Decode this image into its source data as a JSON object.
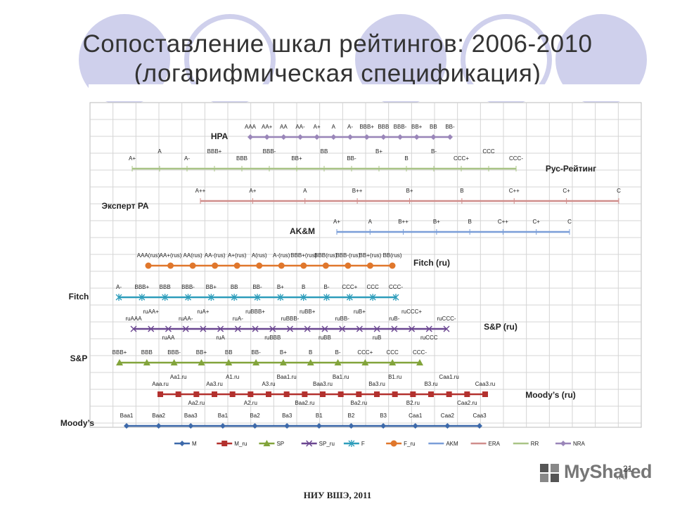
{
  "slide": {
    "title_line1": "Сопоставление шкал рейтингов: 2006-2010",
    "title_line2": "(логарифмическая спецификация)",
    "page_number": "21",
    "footer": "НИУ ВШЭ, 2011",
    "logo_text": "MyShared",
    "logo_suffix": ".ru"
  },
  "chart_data": {
    "type": "line",
    "title": "",
    "xlabel": "",
    "ylabel": "",
    "grid": true,
    "legend_position": "bottom",
    "legend": [
      {
        "key": "M",
        "label": "M",
        "color": "#3c69aa",
        "marker": "diamond"
      },
      {
        "key": "M_ru",
        "label": "M_ru",
        "color": "#b3312e",
        "marker": "square"
      },
      {
        "key": "SP",
        "label": "SP",
        "color": "#82a43b",
        "marker": "triangle"
      },
      {
        "key": "SP_ru",
        "label": "SP_ru",
        "color": "#6a4690",
        "marker": "x"
      },
      {
        "key": "F",
        "label": "F",
        "color": "#2e9dbb",
        "marker": "star"
      },
      {
        "key": "F_ru",
        "label": "F_ru",
        "color": "#e0772c",
        "marker": "circle"
      },
      {
        "key": "AKM",
        "label": "AKM",
        "color": "#7a9ed8",
        "marker": "bar"
      },
      {
        "key": "ERA",
        "label": "ERA",
        "color": "#d08d8b",
        "marker": "bar"
      },
      {
        "key": "RR",
        "label": "RR",
        "color": "#a9c486",
        "marker": "bar"
      },
      {
        "key": "NRA",
        "label": "NRA",
        "color": "#9a86b9",
        "marker": "diamond"
      }
    ],
    "series": [
      {
        "key": "NRA",
        "name": "НРА",
        "ratings": [
          "AAA",
          "AA+",
          "AA",
          "AA-",
          "A+",
          "A",
          "A-",
          "BBB+",
          "BBB",
          "BBB-",
          "BB+",
          "BB",
          "BB-"
        ]
      },
      {
        "key": "RR",
        "name": "Рус-Рейтинг",
        "ratings": [
          "A+",
          "A",
          "A-",
          "BBB+",
          "BBB",
          "BBB-",
          "BB+",
          "BB",
          "BB-",
          "B+",
          "B",
          "B-",
          "CCC+",
          "CCC",
          "CCC-"
        ]
      },
      {
        "key": "ERA",
        "name": "Эксперт РА",
        "ratings": [
          "A++",
          "A+",
          "A",
          "B++",
          "B+",
          "B",
          "C++",
          "C+",
          "C"
        ]
      },
      {
        "key": "AKM",
        "name": "AK&M",
        "ratings": [
          "A+",
          "A",
          "B++",
          "B+",
          "B",
          "C++",
          "C+",
          "C"
        ]
      },
      {
        "key": "F_ru",
        "name": "Fitch (ru)",
        "ratings": [
          "AAA(rus)",
          "AA+(rus)",
          "AA(rus)",
          "AA-(rus)",
          "A+(rus)",
          "A(rus)",
          "A-(rus)",
          "BBB+(rus)",
          "BBB(rus)",
          "BBB-(rus)",
          "BB+(rus)",
          "BB(rus)"
        ]
      },
      {
        "key": "F",
        "name": "Fitch",
        "ratings": [
          "A-",
          "BBB+",
          "BBB",
          "BBB-",
          "BB+",
          "BB",
          "BB-",
          "B+",
          "B",
          "B-",
          "CCC+",
          "CCC",
          "CCC-"
        ]
      },
      {
        "key": "SP_ru",
        "name": "S&P (ru)",
        "ratings": [
          "ruAAA",
          "ruAA+",
          "ruAA",
          "ruAA-",
          "ruA+",
          "ruA",
          "ruA-",
          "ruBBB+",
          "ruBBB",
          "ruBBB-",
          "ruBB+",
          "ruBB",
          "ruBB-",
          "ruB+",
          "ruB",
          "ruB-",
          "ruCCC+",
          "ruCCC",
          "ruCCC-"
        ]
      },
      {
        "key": "SP",
        "name": "S&P",
        "ratings": [
          "BBB+",
          "BBB",
          "BBB-",
          "BB+",
          "BB",
          "BB-",
          "B+",
          "B",
          "B-",
          "CCC+",
          "CCC",
          "CCC-"
        ]
      },
      {
        "key": "M_ru",
        "name": "Moody’s (ru)",
        "ratings": [
          "Aaa.ru",
          "Aa1.ru",
          "Aa2.ru",
          "Aa3.ru",
          "A1.ru",
          "A2.ru",
          "A3.ru",
          "Baa1.ru",
          "Baa2.ru",
          "Baa3.ru",
          "Ba1.ru",
          "Ba2.ru",
          "Ba3.ru",
          "B1.ru",
          "B2.ru",
          "B3.ru",
          "Caa1.ru",
          "Caa2.ru",
          "Caa3.ru"
        ]
      },
      {
        "key": "M",
        "name": "Moody’s",
        "ratings": [
          "Baa1",
          "Baa2",
          "Baa3",
          "Ba1",
          "Ba2",
          "Ba3",
          "B1",
          "B2",
          "B3",
          "Caa1",
          "Caa2",
          "Caa3"
        ]
      }
    ]
  }
}
